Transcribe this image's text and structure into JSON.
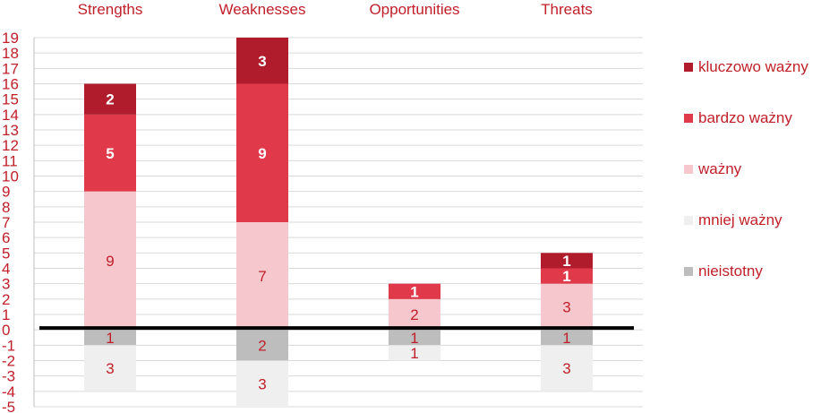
{
  "chart_data": {
    "type": "bar",
    "stacked": true,
    "categories": [
      "Strengths",
      "Weaknesses",
      "Opportunities",
      "Threats"
    ],
    "ylim": [
      -5,
      19
    ],
    "yticks": [
      -5,
      -4,
      -3,
      -2,
      -1,
      0,
      1,
      2,
      3,
      4,
      5,
      6,
      7,
      8,
      9,
      10,
      11,
      12,
      13,
      14,
      15,
      16,
      17,
      18,
      19
    ],
    "grid": true,
    "legend_position": "right",
    "series": [
      {
        "name": "kluczowo ważny",
        "color": "#b01c2c",
        "values": [
          2,
          3,
          0,
          1
        ],
        "label_color": "#ffffff",
        "label_bold": true
      },
      {
        "name": "bardzo ważny",
        "color": "#e03a4a",
        "values": [
          5,
          9,
          1,
          1
        ],
        "label_color": "#ffffff",
        "label_bold": true
      },
      {
        "name": "ważny",
        "color": "#f6c8cd",
        "values": [
          9,
          7,
          2,
          3
        ],
        "label_color": "#c0202a",
        "label_bold": false
      },
      {
        "name": "mniej ważny",
        "color": "#efefef",
        "values": [
          -3,
          -3,
          -1,
          -3
        ],
        "label_color": "#c0202a",
        "label_bold": false
      },
      {
        "name": "nieistotny",
        "color": "#bdbdbd",
        "values": [
          -1,
          -2,
          -1,
          -1
        ],
        "label_color": "#c0202a",
        "label_bold": false
      }
    ],
    "stack_order": {
      "positive": [
        "ważny",
        "bardzo ważny",
        "kluczowo ważny"
      ],
      "negative": [
        "nieistotny",
        "mniej ważny"
      ]
    },
    "data_labels": [
      [
        "2",
        "3",
        "",
        "1"
      ],
      [
        "5",
        "9",
        "1",
        "1"
      ],
      [
        "9",
        "7",
        "2",
        "3"
      ],
      [
        "3",
        "3",
        "1",
        "3"
      ],
      [
        "1",
        "2",
        "1",
        "1"
      ]
    ]
  }
}
